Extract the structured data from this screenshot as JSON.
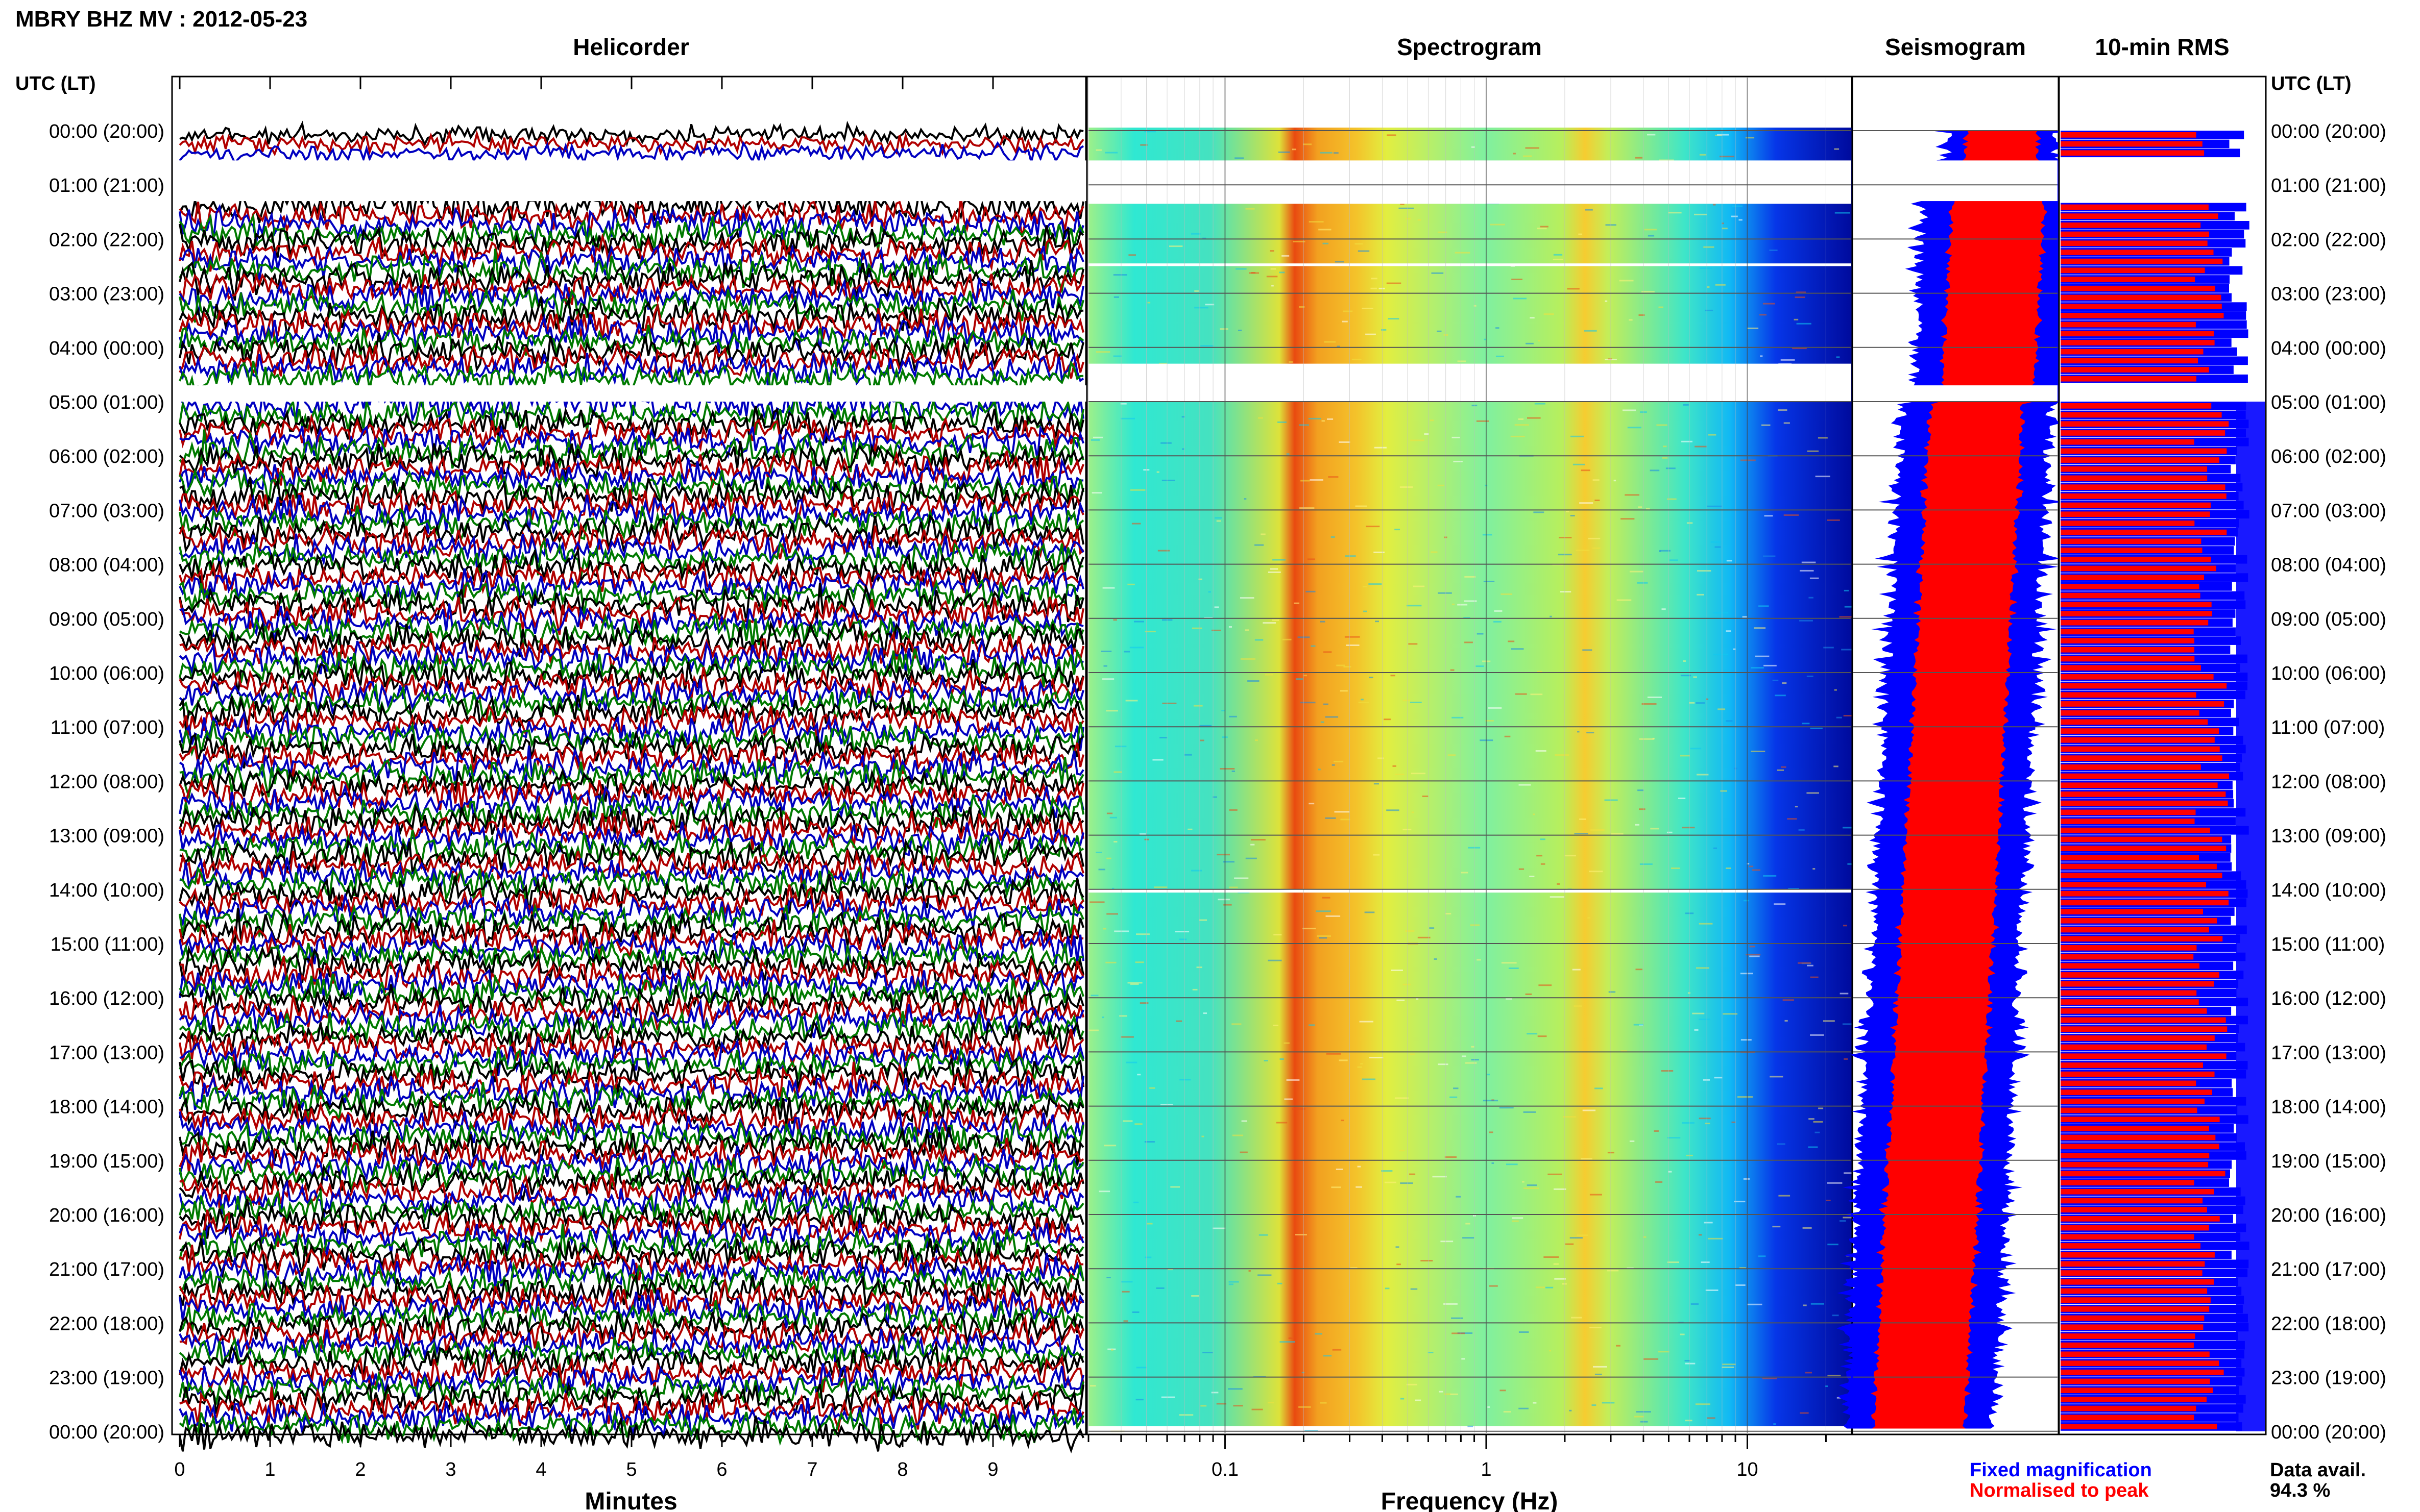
{
  "header": {
    "title": "MBRY BHZ MV : 2012-05-23",
    "left_axis_label": "UTC (LT)",
    "right_axis_label": "UTC (LT)"
  },
  "panels": {
    "helicorder_title": "Helicorder",
    "spectrogram_title": "Spectrogram",
    "seismogram_title": "Seismogram",
    "rms_title": "10-min RMS"
  },
  "legend": {
    "fixed": "Fixed magnification",
    "normalised": "Normalised to peak",
    "data_avail_label": "Data avail.",
    "data_avail_value": "94.3 %"
  },
  "colors": {
    "helicorder_traces": [
      "#000000",
      "#b00000",
      "#0000c0",
      "#007a00"
    ],
    "fixed_magnification": "#0000ff",
    "normalised": "#ff0000"
  },
  "chart_data": [
    {
      "type": "line",
      "panel": "Helicorder",
      "xlabel": "Minutes",
      "xlim": [
        0,
        10
      ],
      "x_ticks": [
        "0",
        "1",
        "2",
        "3",
        "4",
        "5",
        "6",
        "7",
        "8",
        "9"
      ],
      "row_labels": [
        "00:00 (20:00)",
        "01:00 (21:00)",
        "02:00 (22:00)",
        "03:00 (23:00)",
        "04:00 (00:00)",
        "05:00 (01:00)",
        "06:00 (02:00)",
        "07:00 (03:00)",
        "08:00 (04:00)",
        "09:00 (05:00)",
        "10:00 (06:00)",
        "11:00 (07:00)",
        "12:00 (08:00)",
        "13:00 (09:00)",
        "14:00 (10:00)",
        "15:00 (11:00)",
        "16:00 (12:00)",
        "17:00 (13:00)",
        "18:00 (14:00)",
        "19:00 (15:00)",
        "20:00 (16:00)",
        "21:00 (17:00)",
        "22:00 (18:00)",
        "23:00 (19:00)",
        "00:00 (20:00)"
      ],
      "gaps_hours": [
        [
          0.55,
          1.3
        ],
        [
          4.7,
          5.0
        ]
      ]
    },
    {
      "type": "heatmap",
      "panel": "Spectrogram",
      "xlabel": "Frequency (Hz)",
      "x_scale": "log",
      "xlim": [
        0.03,
        25
      ],
      "x_ticks": [
        "0.1",
        "1",
        "10"
      ],
      "energy_band_hz": [
        0.2,
        0.5
      ],
      "secondary_band_hz": [
        2.5,
        4.5
      ]
    },
    {
      "type": "area",
      "panel": "Seismogram",
      "series": [
        {
          "name": "Fixed magnification"
        },
        {
          "name": "Normalised to peak"
        }
      ]
    },
    {
      "type": "bar",
      "panel": "10-min RMS",
      "series": [
        {
          "name": "Fixed magnification"
        },
        {
          "name": "Normalised to peak"
        }
      ],
      "gaps_hours": [
        [
          0.55,
          1.3
        ],
        [
          4.7,
          5.0
        ]
      ]
    }
  ]
}
